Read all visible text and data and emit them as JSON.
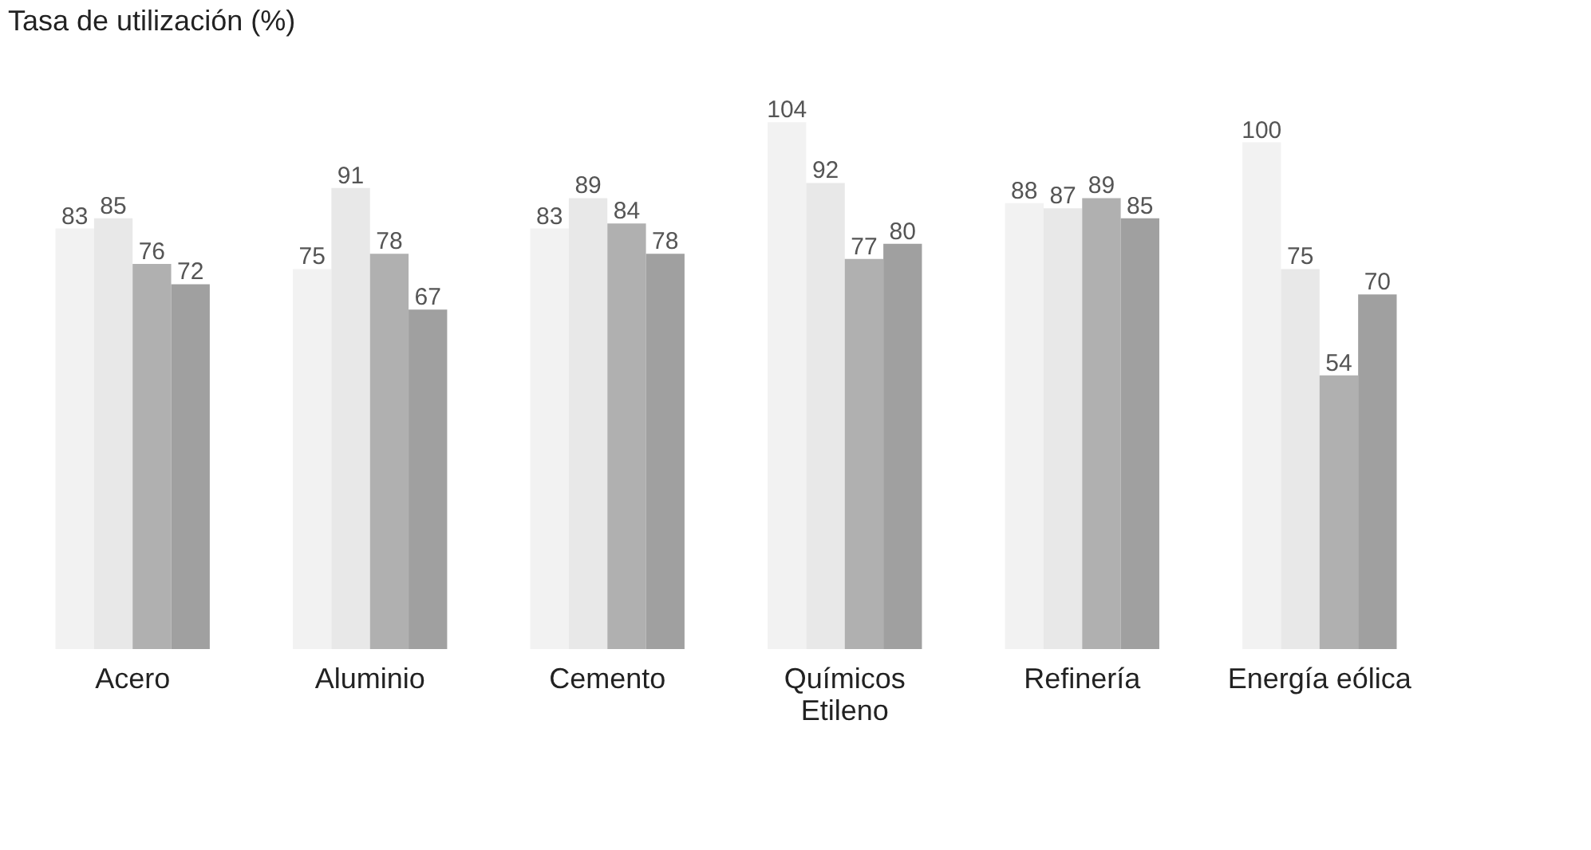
{
  "chart_data": {
    "type": "bar",
    "title": "Tasa de utilización (%)",
    "categories": [
      "Acero",
      "Aluminio",
      "Cemento",
      "Químicos\nEtileno",
      "Refinería",
      "Energía eólica"
    ],
    "series": [
      {
        "color": "#f2f2f2",
        "values": [
          83,
          75,
          83,
          104,
          88,
          100
        ]
      },
      {
        "color": "#e8e8e8",
        "values": [
          85,
          91,
          89,
          92,
          87,
          75
        ]
      },
      {
        "color": "#b0b0b0",
        "values": [
          76,
          78,
          84,
          77,
          89,
          54
        ]
      },
      {
        "color": "#a0a0a0",
        "values": [
          72,
          67,
          78,
          80,
          85,
          70
        ]
      }
    ],
    "data_labels": true,
    "legend": false,
    "grid": false
  }
}
